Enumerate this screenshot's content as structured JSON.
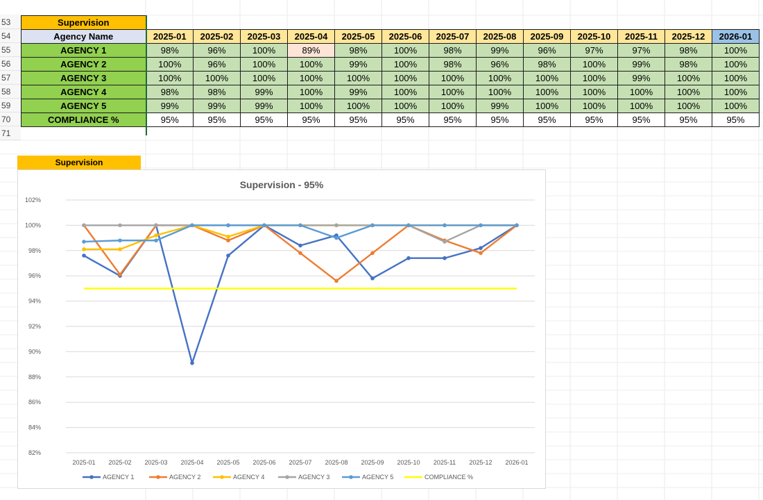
{
  "row_numbers": [
    "53",
    "54",
    "55",
    "56",
    "57",
    "58",
    "59",
    "70",
    "71"
  ],
  "table": {
    "title": "Supervision",
    "name_header": "Agency Name",
    "months": [
      "2025-01",
      "2025-02",
      "2025-03",
      "2025-04",
      "2025-05",
      "2025-06",
      "2025-07",
      "2025-08",
      "2025-09",
      "2025-10",
      "2025-11",
      "2025-12",
      "2026-01"
    ],
    "rows": [
      {
        "name": "AGENCY 1",
        "values": [
          "98%",
          "96%",
          "100%",
          "89%",
          "98%",
          "100%",
          "98%",
          "99%",
          "96%",
          "97%",
          "97%",
          "98%",
          "100%"
        ]
      },
      {
        "name": "AGENCY 2",
        "values": [
          "100%",
          "96%",
          "100%",
          "100%",
          "99%",
          "100%",
          "98%",
          "96%",
          "98%",
          "100%",
          "99%",
          "98%",
          "100%"
        ]
      },
      {
        "name": "AGENCY 3",
        "values": [
          "100%",
          "100%",
          "100%",
          "100%",
          "100%",
          "100%",
          "100%",
          "100%",
          "100%",
          "100%",
          "99%",
          "100%",
          "100%"
        ]
      },
      {
        "name": "AGENCY 4",
        "values": [
          "98%",
          "98%",
          "99%",
          "100%",
          "99%",
          "100%",
          "100%",
          "100%",
          "100%",
          "100%",
          "100%",
          "100%",
          "100%"
        ]
      },
      {
        "name": "AGENCY 5",
        "values": [
          "99%",
          "99%",
          "99%",
          "100%",
          "100%",
          "100%",
          "100%",
          "99%",
          "100%",
          "100%",
          "100%",
          "100%",
          "100%"
        ]
      },
      {
        "name": "COMPLIANCE %",
        "values": [
          "95%",
          "95%",
          "95%",
          "95%",
          "95%",
          "95%",
          "95%",
          "95%",
          "95%",
          "95%",
          "95%",
          "95%",
          "95%"
        ]
      }
    ]
  },
  "chart_label": "Supervision",
  "chart_data": {
    "type": "line",
    "title": "Supervision - 95%",
    "xlabel": "",
    "ylabel": "",
    "x": [
      "2025-01",
      "2025-02",
      "2025-03",
      "2025-04",
      "2025-05",
      "2025-06",
      "2025-07",
      "2025-08",
      "2025-09",
      "2025-10",
      "2025-11",
      "2025-12",
      "2026-01"
    ],
    "ylim": [
      82,
      102
    ],
    "yticks": [
      82,
      84,
      86,
      88,
      90,
      92,
      94,
      96,
      98,
      100,
      102
    ],
    "ytick_labels": [
      "82%",
      "84%",
      "86%",
      "88%",
      "90%",
      "92%",
      "94%",
      "96%",
      "98%",
      "100%",
      "102%"
    ],
    "grid": true,
    "legend_position": "bottom",
    "series": [
      {
        "name": "AGENCY 1",
        "color": "#4472c4",
        "values": [
          97.6,
          96.0,
          100,
          89.1,
          97.6,
          100,
          98.4,
          99.2,
          95.8,
          97.4,
          97.4,
          98.2,
          100
        ]
      },
      {
        "name": "AGENCY 2",
        "color": "#ed7d31",
        "values": [
          100,
          96.1,
          100,
          100,
          98.8,
          100,
          97.8,
          95.6,
          97.8,
          100,
          98.8,
          97.8,
          100
        ]
      },
      {
        "name": "AGENCY 4",
        "color": "#ffc000",
        "values": [
          98.1,
          98.1,
          99.2,
          100,
          99.1,
          100,
          100,
          100,
          100,
          100,
          100,
          100,
          100
        ]
      },
      {
        "name": "AGENCY 3",
        "color": "#a5a5a5",
        "values": [
          100,
          100,
          100,
          100,
          100,
          100,
          100,
          100,
          100,
          100,
          98.7,
          100,
          100
        ]
      },
      {
        "name": "AGENCY 5",
        "color": "#5b9bd5",
        "values": [
          98.7,
          98.8,
          98.8,
          100,
          100,
          100,
          100,
          99.0,
          100,
          100,
          100,
          100,
          100
        ]
      },
      {
        "name": "COMPLIANCE %",
        "color": "#ffff00",
        "values": [
          95,
          95,
          95,
          95,
          95,
          95,
          95,
          95,
          95,
          95,
          95,
          95,
          95
        ],
        "markers": false
      }
    ]
  }
}
